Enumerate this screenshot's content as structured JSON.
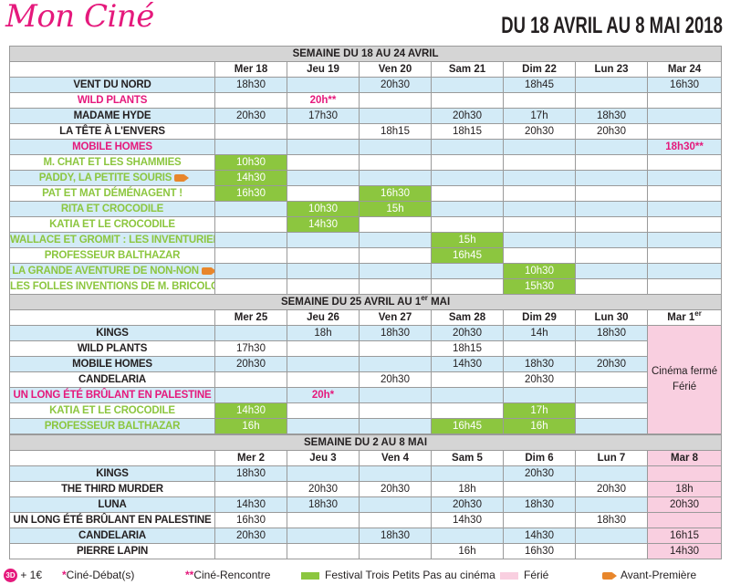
{
  "header": {
    "logo": "Mon Ciné",
    "dates": "DU 18 AVRIL AU 8 MAI 2018"
  },
  "weeks": [
    {
      "title": "SEMAINE DU 18 AU 24 AVRIL",
      "days": [
        "Mer 18",
        "Jeu 19",
        "Ven 20",
        "Sam 21",
        "Dim 22",
        "Lun 23",
        "Mar 24"
      ],
      "rows": [
        {
          "film": "VENT DU NORD",
          "times": [
            "18h30",
            "",
            "20h30",
            "",
            "18h45",
            "",
            "16h30"
          ]
        },
        {
          "film": "WILD PLANTS",
          "times": [
            "",
            "20h**",
            "",
            "",
            "",
            "",
            ""
          ]
        },
        {
          "film": "MADAME HYDE",
          "times": [
            "20h30",
            "17h30",
            "",
            "20h30",
            "17h",
            "18h30",
            ""
          ]
        },
        {
          "film": "LA TÊTE À L'ENVERS",
          "times": [
            "",
            "",
            "18h15",
            "18h15",
            "20h30",
            "20h30",
            ""
          ]
        },
        {
          "film": "MOBILE HOMES",
          "times": [
            "",
            "",
            "",
            "",
            "",
            "",
            "18h30**"
          ]
        },
        {
          "film": "M. CHAT ET LES SHAMMIES",
          "times": [
            "10h30",
            "",
            "",
            "",
            "",
            "",
            ""
          ]
        },
        {
          "film": "PADDY, LA PETITE SOURIS",
          "times": [
            "14h30",
            "",
            "",
            "",
            "",
            "",
            ""
          ]
        },
        {
          "film": "PAT ET MAT DÉMÉNAGENT !",
          "times": [
            "16h30",
            "",
            "16h30",
            "",
            "",
            "",
            ""
          ]
        },
        {
          "film": "RITA ET CROCODILE",
          "times": [
            "",
            "10h30",
            "15h",
            "",
            "",
            "",
            ""
          ]
        },
        {
          "film": "KATIA ET LE CROCODILE",
          "times": [
            "",
            "14h30",
            "",
            "",
            "",
            "",
            ""
          ]
        },
        {
          "film": "WALLACE ET GROMIT : LES INVENTURIERS",
          "times": [
            "",
            "",
            "",
            "15h",
            "",
            "",
            ""
          ]
        },
        {
          "film": "PROFESSEUR BALTHAZAR",
          "times": [
            "",
            "",
            "",
            "16h45",
            "",
            "",
            ""
          ]
        },
        {
          "film": "LA GRANDE AVENTURE DE NON-NON",
          "times": [
            "",
            "",
            "",
            "",
            "10h30",
            "",
            ""
          ]
        },
        {
          "film": "LES FOLLES INVENTIONS DE M. BRICOLO",
          "times": [
            "",
            "",
            "",
            "",
            "15h30",
            "",
            ""
          ]
        }
      ]
    },
    {
      "title_pre": "SEMAINE DU 25 AVRIL AU 1",
      "title_sup": "er",
      "title_post": " MAI",
      "days": [
        "Mer 25",
        "Jeu 26",
        "Ven 27",
        "Sam 28",
        "Dim 29",
        "Lun 30",
        "Mar 1"
      ],
      "last_day_sup": "er",
      "closed_text": "Cinéma fermé Férié",
      "rows": [
        {
          "film": "KINGS",
          "times": [
            "",
            "18h",
            "18h30",
            "20h30",
            "14h",
            "18h30"
          ]
        },
        {
          "film": "WILD PLANTS",
          "times": [
            "17h30",
            "",
            "",
            "18h15",
            "",
            ""
          ]
        },
        {
          "film": "MOBILE HOMES",
          "times": [
            "20h30",
            "",
            "",
            "14h30",
            "18h30",
            "20h30"
          ]
        },
        {
          "film": "CANDELARIA",
          "times": [
            "",
            "",
            "20h30",
            "",
            "20h30",
            ""
          ]
        },
        {
          "film": "UN LONG ÉTÉ BRÛLANT EN PALESTINE",
          "times": [
            "",
            "20h*",
            "",
            "",
            "",
            ""
          ]
        },
        {
          "film": "KATIA ET LE CROCODILE",
          "times": [
            "14h30",
            "",
            "",
            "",
            "17h",
            ""
          ]
        },
        {
          "film": "PROFESSEUR BALTHAZAR",
          "times": [
            "16h",
            "",
            "",
            "16h45",
            "16h",
            ""
          ]
        }
      ]
    },
    {
      "title": "SEMAINE DU 2 AU 8 MAI",
      "days": [
        "Mer 2",
        "Jeu 3",
        "Ven 4",
        "Sam 5",
        "Dim 6",
        "Lun 7",
        "Mar 8"
      ],
      "rows": [
        {
          "film": "KINGS",
          "times": [
            "18h30",
            "",
            "",
            "",
            "20h30",
            "",
            ""
          ]
        },
        {
          "film": "THE THIRD MURDER",
          "times": [
            "",
            "20h30",
            "20h30",
            "18h",
            "",
            "20h30",
            "18h"
          ]
        },
        {
          "film": "LUNA",
          "times": [
            "14h30",
            "18h30",
            "",
            "20h30",
            "18h30",
            "",
            "20h30"
          ]
        },
        {
          "film": "UN LONG ÉTÉ BRÛLANT EN PALESTINE",
          "times": [
            "16h30",
            "",
            "",
            "14h30",
            "",
            "18h30",
            ""
          ]
        },
        {
          "film": "CANDELARIA",
          "times": [
            "20h30",
            "",
            "18h30",
            "",
            "14h30",
            "",
            "16h15"
          ]
        },
        {
          "film": "PIERRE LAPIN",
          "times": [
            "",
            "",
            "",
            "16h",
            "16h30",
            "",
            "14h30"
          ]
        }
      ]
    }
  ],
  "legend": {
    "badge": "3D",
    "price": "+ 1€",
    "debat_star": "*",
    "debat": "Ciné-Débat(s)",
    "rencontre_star": "**",
    "rencontre": "Ciné-Rencontre",
    "festival": "Festival Trois Petits Pas au cinéma",
    "ferie": "Férié",
    "avant": "Avant-Première"
  },
  "colors": {
    "pink": "#e5197c",
    "green": "#8cc63f",
    "light_blue": "#d3ebf7",
    "holiday_pink": "#f9cfe0",
    "header_gray": "#d5d5d5",
    "camera_orange": "#e8862b"
  },
  "icons": [
    "camera-icon",
    "3d-badge-icon"
  ]
}
